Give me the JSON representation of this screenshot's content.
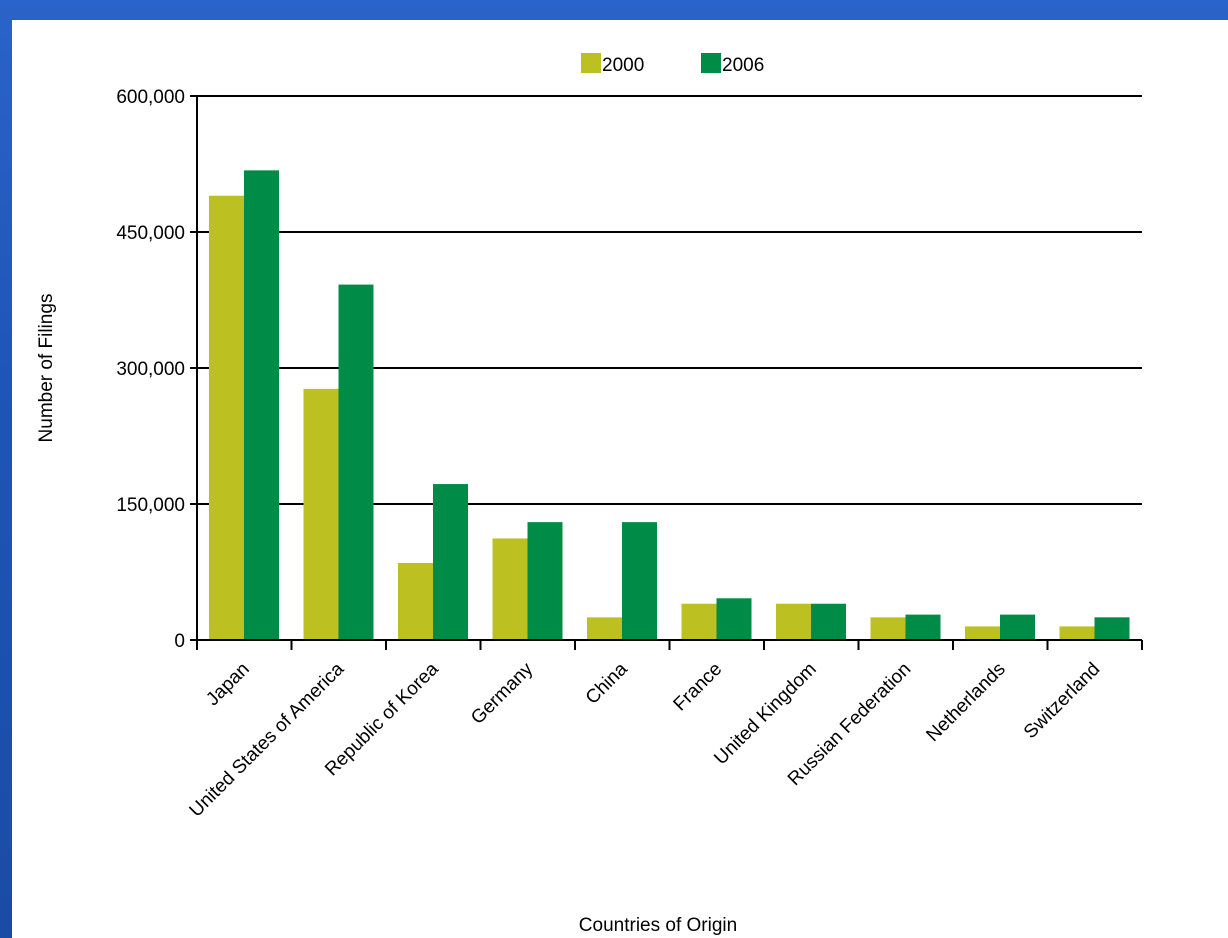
{
  "colors": {
    "background": "#2a63c9",
    "panel": "#ffffff"
  },
  "chart_data": {
    "type": "bar",
    "title": "",
    "xlabel": "Countries of Origin",
    "ylabel": "Number of Filings",
    "ylim": [
      0,
      600000
    ],
    "yticks": [
      0,
      150000,
      300000,
      450000,
      600000
    ],
    "ytick_labels": [
      "0",
      "150,000",
      "300,000",
      "450,000",
      "600,000"
    ],
    "grid": true,
    "legend_position": "top-center",
    "categories": [
      "Japan",
      "United States of America",
      "Republic of Korea",
      "Germany",
      "China",
      "France",
      "United Kingdom",
      "Russian Federation",
      "Netherlands",
      "Switzerland"
    ],
    "series": [
      {
        "name": "2000",
        "color": "#bcc121",
        "values": [
          490000,
          277000,
          85000,
          112000,
          25000,
          40000,
          40000,
          25000,
          15000,
          15000
        ]
      },
      {
        "name": "2006",
        "color": "#008c46",
        "values": [
          518000,
          392000,
          172000,
          130000,
          130000,
          46000,
          40000,
          28000,
          28000,
          25000
        ]
      }
    ]
  }
}
